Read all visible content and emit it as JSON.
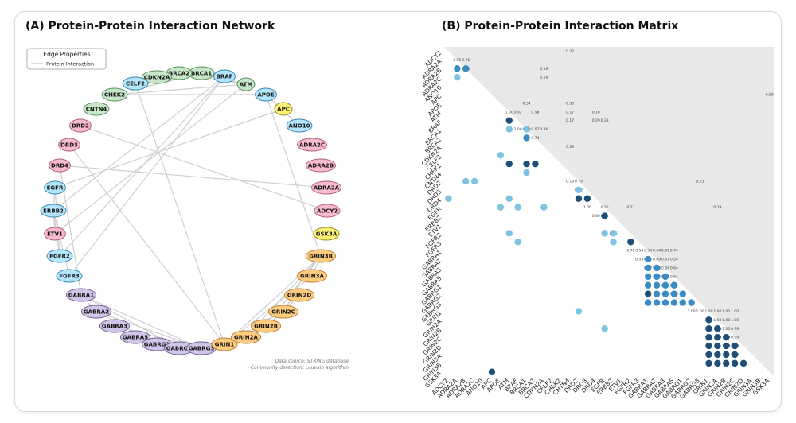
{
  "colors": {
    "green": "#c8e6c9",
    "blue": "#b3e5fc",
    "red": "#f8bbd0",
    "yellow": "#fff176",
    "orange": "#ffcc80",
    "purple": "#d1c4e9",
    "matrix_tri": "#e8e8e8",
    "dot_light": "#7ec3e0",
    "dot_mid": "#3a8cc4",
    "dot_dark": "#1f4e79"
  },
  "panelA": {
    "title": "(A) Protein-Protein Interaction Network",
    "legend": {
      "title": "Edge Properties",
      "entry": "Protein Interaction"
    },
    "footnote1": "Data source: STRING database",
    "footnote2": "Community detection: Louvain algorithm"
  },
  "panelB": {
    "title": "(B) Protein-Protein Interaction Matrix"
  },
  "chart_data": [
    {
      "type": "network",
      "nodes": [
        {
          "id": "ADCY2",
          "group": "red"
        },
        {
          "id": "ADRA2A",
          "group": "red"
        },
        {
          "id": "ADRA2B",
          "group": "red"
        },
        {
          "id": "ADRA2C",
          "group": "red"
        },
        {
          "id": "ANO10",
          "group": "blue"
        },
        {
          "id": "APC",
          "group": "yellow"
        },
        {
          "id": "APOE",
          "group": "blue"
        },
        {
          "id": "ATM",
          "group": "green"
        },
        {
          "id": "BRAF",
          "group": "blue"
        },
        {
          "id": "BRCA1",
          "group": "green"
        },
        {
          "id": "BRCA2",
          "group": "green"
        },
        {
          "id": "CDKN2A",
          "group": "green"
        },
        {
          "id": "CELF2",
          "group": "blue"
        },
        {
          "id": "CHEK2",
          "group": "green"
        },
        {
          "id": "CNTN4",
          "group": "green"
        },
        {
          "id": "DRD2",
          "group": "red"
        },
        {
          "id": "DRD3",
          "group": "red"
        },
        {
          "id": "DRD4",
          "group": "red"
        },
        {
          "id": "EGFR",
          "group": "blue"
        },
        {
          "id": "ERBB2",
          "group": "blue"
        },
        {
          "id": "ETV1",
          "group": "red"
        },
        {
          "id": "FGFR2",
          "group": "blue"
        },
        {
          "id": "FGFR3",
          "group": "blue"
        },
        {
          "id": "GABRA1",
          "group": "purple"
        },
        {
          "id": "GABRA2",
          "group": "purple"
        },
        {
          "id": "GABRA3",
          "group": "purple"
        },
        {
          "id": "GABRA5",
          "group": "purple"
        },
        {
          "id": "GABRG1",
          "group": "purple"
        },
        {
          "id": "GABRG2",
          "group": "purple"
        },
        {
          "id": "GABRG3",
          "group": "purple"
        },
        {
          "id": "GRIN1",
          "group": "orange"
        },
        {
          "id": "GRIN2A",
          "group": "orange"
        },
        {
          "id": "GRIN2B",
          "group": "orange"
        },
        {
          "id": "GRIN2C",
          "group": "orange"
        },
        {
          "id": "GRIN2D",
          "group": "orange"
        },
        {
          "id": "GRIN3A",
          "group": "orange"
        },
        {
          "id": "GRIN3B",
          "group": "orange"
        },
        {
          "id": "GSK3A",
          "group": "yellow"
        }
      ],
      "edges": [
        [
          "BRCA1",
          "ATM"
        ],
        [
          "BRCA1",
          "CHEK2"
        ],
        [
          "BRCA2",
          "ATM"
        ],
        [
          "CHEK2",
          "ATM"
        ],
        [
          "CHEK2",
          "APOE"
        ],
        [
          "CDKN2A",
          "BRAF"
        ],
        [
          "BRAF",
          "FGFR2"
        ],
        [
          "BRAF",
          "ERBB2"
        ],
        [
          "BRAF",
          "FGFR3"
        ],
        [
          "ATM",
          "ETV1"
        ],
        [
          "APOE",
          "ANO10"
        ],
        [
          "APOE",
          "GRIN3B"
        ],
        [
          "ADRA2A",
          "DRD4"
        ],
        [
          "DRD2",
          "ADCY2"
        ],
        [
          "EGFR",
          "ERBB2"
        ],
        [
          "EGFR",
          "APC"
        ],
        [
          "EGFR",
          "FGFR2"
        ],
        [
          "ERBB2",
          "ETV1"
        ],
        [
          "ERBB2",
          "FGFR2"
        ],
        [
          "ERBB2",
          "FGFR3"
        ],
        [
          "DRD3",
          "GRIN1"
        ],
        [
          "DRD4",
          "GABRA1"
        ],
        [
          "CELF2",
          "GRIN1"
        ],
        [
          "GABRA1",
          "GABRG2"
        ],
        [
          "GABRA1",
          "GABRG3"
        ],
        [
          "GABRA1",
          "GABRA2"
        ],
        [
          "GABRA2",
          "GABRG3"
        ],
        [
          "GABRA2",
          "GABRG1"
        ],
        [
          "GABRA3",
          "GABRG3"
        ],
        [
          "GABRA5",
          "GABRG2"
        ],
        [
          "GABRG1",
          "GABRG3"
        ],
        [
          "GRIN1",
          "GRIN2A"
        ],
        [
          "GRIN1",
          "GRIN2B"
        ],
        [
          "GRIN1",
          "GRIN3B"
        ],
        [
          "GRIN1",
          "GRIN3A"
        ],
        [
          "GRIN2A",
          "GRIN3B"
        ],
        [
          "GRIN2A",
          "GRIN2D"
        ],
        [
          "GRIN2B",
          "GRIN3B"
        ],
        [
          "GRIN2B",
          "GRIN2C"
        ],
        [
          "GRIN2C",
          "GRIN2D"
        ],
        [
          "GRIN3A",
          "GRIN3B"
        ]
      ]
    },
    {
      "type": "heatmap",
      "labels": [
        "ADCY2",
        "ADRA2A",
        "ADRA2B",
        "ADRA2C",
        "ANO10",
        "APC",
        "APOE",
        "ATM",
        "BRAF",
        "BRCA1",
        "BRCA2",
        "CDKN2A",
        "CELF2",
        "CHEK2",
        "CNTN4",
        "DRD2",
        "DRD3",
        "DRD4",
        "EGFR",
        "ERBB2",
        "ETV1",
        "FGFR2",
        "FGFR3",
        "GABRA1",
        "GABRA2",
        "GABRA3",
        "GABRA5",
        "GABRG1",
        "GABRG2",
        "GABRG3",
        "GRIN1",
        "GRIN2A",
        "GRIN2B",
        "GRIN2C",
        "GRIN2D",
        "GRIN3A",
        "GRIN3B",
        "GSK3A"
      ],
      "cells": [
        {
          "r": 2,
          "c": 1,
          "v": 0.55
        },
        {
          "r": 2,
          "c": 2,
          "v": 0.76
        },
        {
          "r": 3,
          "c": 1,
          "v": 0.44
        },
        {
          "r": 8,
          "c": 7,
          "v": 0.92
        },
        {
          "r": 9,
          "c": 7,
          "v": 0.29
        },
        {
          "r": 9,
          "c": 9,
          "v": 0.36
        },
        {
          "r": 10,
          "c": 9,
          "v": 0.74
        },
        {
          "r": 12,
          "c": 6,
          "v": 0.29
        },
        {
          "r": 13,
          "c": 7,
          "v": 0.97
        },
        {
          "r": 13,
          "c": 9,
          "v": 0.97
        },
        {
          "r": 13,
          "c": 10,
          "v": 0.97
        },
        {
          "r": 14,
          "c": 9,
          "v": 0.29
        },
        {
          "r": 15,
          "c": 2,
          "v": 0.29
        },
        {
          "r": 15,
          "c": 3,
          "v": 0.29
        },
        {
          "r": 16,
          "c": 15,
          "v": 0.29
        },
        {
          "r": 17,
          "c": 0,
          "v": 0.44
        },
        {
          "r": 17,
          "c": 7,
          "v": 0.29
        },
        {
          "r": 17,
          "c": 15,
          "v": 0.92
        },
        {
          "r": 17,
          "c": 16,
          "v": 0.97
        },
        {
          "r": 18,
          "c": 6,
          "v": 0.35
        },
        {
          "r": 18,
          "c": 8,
          "v": 0.29
        },
        {
          "r": 18,
          "c": 11,
          "v": 0.35
        },
        {
          "r": 19,
          "c": 18,
          "v": 0.92
        },
        {
          "r": 21,
          "c": 7,
          "v": 0.29
        },
        {
          "r": 21,
          "c": 18,
          "v": 0.35
        },
        {
          "r": 21,
          "c": 19,
          "v": 0.35
        },
        {
          "r": 22,
          "c": 8,
          "v": 0.35
        },
        {
          "r": 22,
          "c": 19,
          "v": 0.35
        },
        {
          "r": 22,
          "c": 21,
          "v": 0.96
        },
        {
          "r": 24,
          "c": 23,
          "v": 0.78
        },
        {
          "r": 25,
          "c": 23,
          "v": 0.54
        },
        {
          "r": 25,
          "c": 24,
          "v": 0.54
        },
        {
          "r": 26,
          "c": 23,
          "v": 0.64
        },
        {
          "r": 26,
          "c": 24,
          "v": 0.64
        },
        {
          "r": 26,
          "c": 25,
          "v": 0.64
        },
        {
          "r": 27,
          "c": 23,
          "v": 0.77
        },
        {
          "r": 27,
          "c": 24,
          "v": 0.64
        },
        {
          "r": 27,
          "c": 25,
          "v": 0.64
        },
        {
          "r": 27,
          "c": 26,
          "v": 0.64
        },
        {
          "r": 28,
          "c": 23,
          "v": 0.99
        },
        {
          "r": 28,
          "c": 24,
          "v": 0.77
        },
        {
          "r": 28,
          "c": 25,
          "v": 0.67
        },
        {
          "r": 28,
          "c": 26,
          "v": 0.64
        },
        {
          "r": 28,
          "c": 27,
          "v": 0.74
        },
        {
          "r": 29,
          "c": 23,
          "v": 0.6
        },
        {
          "r": 29,
          "c": 24,
          "v": 0.54
        },
        {
          "r": 29,
          "c": 25,
          "v": 0.54
        },
        {
          "r": 29,
          "c": 26,
          "v": 0.54
        },
        {
          "r": 29,
          "c": 27,
          "v": 0.54
        },
        {
          "r": 29,
          "c": 28,
          "v": 0.54
        },
        {
          "r": 30,
          "c": 15,
          "v": 0.35
        },
        {
          "r": 31,
          "c": 30,
          "v": 1.0
        },
        {
          "r": 32,
          "c": 30,
          "v": 1.0
        },
        {
          "r": 32,
          "c": 31,
          "v": 1.0
        },
        {
          "r": 32,
          "c": 18,
          "v": 0.35
        },
        {
          "r": 33,
          "c": 30,
          "v": 1.0
        },
        {
          "r": 33,
          "c": 31,
          "v": 1.0
        },
        {
          "r": 33,
          "c": 32,
          "v": 0.99
        },
        {
          "r": 34,
          "c": 30,
          "v": 1.0
        },
        {
          "r": 34,
          "c": 31,
          "v": 1.0
        },
        {
          "r": 34,
          "c": 32,
          "v": 1.0
        },
        {
          "r": 34,
          "c": 33,
          "v": 0.99
        },
        {
          "r": 35,
          "c": 30,
          "v": 1.0
        },
        {
          "r": 35,
          "c": 31,
          "v": 1.0
        },
        {
          "r": 35,
          "c": 32,
          "v": 1.0
        },
        {
          "r": 35,
          "c": 33,
          "v": 1.0
        },
        {
          "r": 36,
          "c": 30,
          "v": 1.0
        },
        {
          "r": 36,
          "c": 31,
          "v": 1.0
        },
        {
          "r": 36,
          "c": 32,
          "v": 1.0
        },
        {
          "r": 36,
          "c": 33,
          "v": 1.0
        },
        {
          "r": 36,
          "c": 34,
          "v": 0.99
        },
        {
          "r": 37,
          "c": 5,
          "v": 0.97
        }
      ],
      "annotations": [
        {
          "r": 0,
          "c": 14,
          "v": "0.32"
        },
        {
          "r": 1,
          "c": 1,
          "v": "0.55"
        },
        {
          "r": 1,
          "c": 2,
          "v": "0.76"
        },
        {
          "r": 2,
          "c": 2,
          "v": "0.44"
        },
        {
          "r": 2,
          "c": 11,
          "v": "0.19"
        },
        {
          "r": 3,
          "c": 11,
          "v": "0.18"
        },
        {
          "r": 5,
          "c": 37,
          "v": "0.99"
        },
        {
          "r": 6,
          "c": 9,
          "v": "0.34"
        },
        {
          "r": 6,
          "c": 14,
          "v": "0.30"
        },
        {
          "r": 7,
          "c": 7,
          "v": "1.00"
        },
        {
          "r": 7,
          "c": 8,
          "v": "0.92"
        },
        {
          "r": 7,
          "c": 10,
          "v": "0.98"
        },
        {
          "r": 7,
          "c": 14,
          "v": "0.17"
        },
        {
          "r": 7,
          "c": 17,
          "v": "0.16"
        },
        {
          "r": 8,
          "c": 14,
          "v": "0.17"
        },
        {
          "r": 8,
          "c": 17,
          "v": "0.29"
        },
        {
          "r": 8,
          "c": 18,
          "v": "0.33"
        },
        {
          "r": 9,
          "c": 8,
          "v": "1.00"
        },
        {
          "r": 9,
          "c": 9,
          "v": "0.29"
        },
        {
          "r": 9,
          "c": 10,
          "v": "0.97"
        },
        {
          "r": 9,
          "c": 11,
          "v": "0.36"
        },
        {
          "r": 10,
          "c": 10,
          "v": "0.74"
        },
        {
          "r": 11,
          "c": 14,
          "v": "0.29"
        },
        {
          "r": 15,
          "c": 14,
          "v": "0.19"
        },
        {
          "r": 15,
          "c": 15,
          "v": "0.79"
        },
        {
          "r": 15,
          "c": 29,
          "v": "0.23"
        },
        {
          "r": 16,
          "c": 15,
          "v": "0.92"
        },
        {
          "r": 18,
          "c": 16,
          "v": "1.00"
        },
        {
          "r": 18,
          "c": 18,
          "v": "0.35"
        },
        {
          "r": 18,
          "c": 21,
          "v": "0.23"
        },
        {
          "r": 18,
          "c": 31,
          "v": "0.29"
        },
        {
          "r": 19,
          "c": 17,
          "v": "0.60"
        },
        {
          "r": 19,
          "c": 18,
          "v": "0.61"
        },
        {
          "r": 21,
          "c": 19,
          "v": "0.96"
        },
        {
          "r": 23,
          "c": 21,
          "v": "0.78"
        },
        {
          "r": 23,
          "c": 22,
          "v": "0.54"
        },
        {
          "r": 23,
          "c": 23,
          "v": "0.54"
        },
        {
          "r": 23,
          "c": 24,
          "v": "0.64"
        },
        {
          "r": 23,
          "c": 25,
          "v": "0.99"
        },
        {
          "r": 23,
          "c": 26,
          "v": "0.74"
        },
        {
          "r": 24,
          "c": 22,
          "v": "0.54"
        },
        {
          "r": 24,
          "c": 23,
          "v": "0.54"
        },
        {
          "r": 24,
          "c": 24,
          "v": "0.69"
        },
        {
          "r": 24,
          "c": 25,
          "v": "0.67"
        },
        {
          "r": 24,
          "c": 26,
          "v": "0.54"
        },
        {
          "r": 25,
          "c": 23,
          "v": "0.77"
        },
        {
          "r": 25,
          "c": 24,
          "v": "0.64"
        },
        {
          "r": 25,
          "c": 25,
          "v": "0.64"
        },
        {
          "r": 25,
          "c": 26,
          "v": "0.64"
        },
        {
          "r": 26,
          "c": 24,
          "v": "0.64"
        },
        {
          "r": 26,
          "c": 25,
          "v": "0.64"
        },
        {
          "r": 26,
          "c": 26,
          "v": "0.64"
        },
        {
          "r": 27,
          "c": 25,
          "v": "0.77"
        },
        {
          "r": 27,
          "c": 26,
          "v": "0.34"
        },
        {
          "r": 28,
          "c": 26,
          "v": "0.60"
        },
        {
          "r": 30,
          "c": 28,
          "v": "1.00"
        },
        {
          "r": 30,
          "c": 29,
          "v": "1.00"
        },
        {
          "r": 30,
          "c": 30,
          "v": "1.00"
        },
        {
          "r": 30,
          "c": 31,
          "v": "1.00"
        },
        {
          "r": 30,
          "c": 32,
          "v": "1.00"
        },
        {
          "r": 30,
          "c": 33,
          "v": "1.00"
        },
        {
          "r": 31,
          "c": 30,
          "v": "1.00"
        },
        {
          "r": 31,
          "c": 31,
          "v": "1.00"
        },
        {
          "r": 31,
          "c": 32,
          "v": "1.00"
        },
        {
          "r": 31,
          "c": 33,
          "v": "1.00"
        },
        {
          "r": 32,
          "c": 30,
          "v": "1.00"
        },
        {
          "r": 32,
          "c": 31,
          "v": "1.00"
        },
        {
          "r": 32,
          "c": 32,
          "v": "1.00"
        },
        {
          "r": 32,
          "c": 33,
          "v": "0.99"
        },
        {
          "r": 33,
          "c": 31,
          "v": "1.00"
        },
        {
          "r": 33,
          "c": 32,
          "v": "1.00"
        },
        {
          "r": 33,
          "c": 33,
          "v": "0.99"
        },
        {
          "r": 34,
          "c": 32,
          "v": "1.00"
        },
        {
          "r": 34,
          "c": 33,
          "v": "0.99"
        },
        {
          "r": 35,
          "c": 33,
          "v": "0.99"
        }
      ]
    }
  ]
}
